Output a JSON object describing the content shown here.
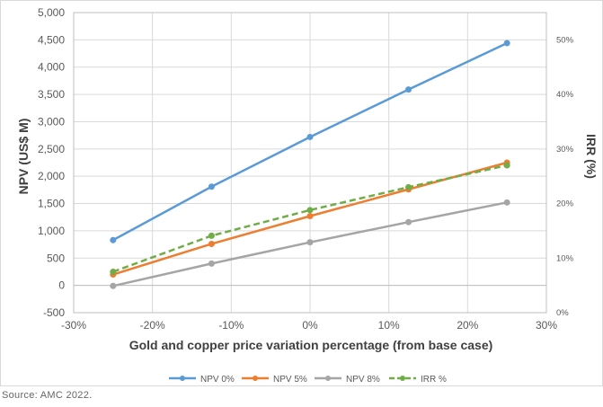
{
  "chart_data": {
    "type": "line",
    "xlabel": "Gold and copper price variation percentage (from base case)",
    "ylabel": "NPV (US$ M)",
    "y2label": "IRR (%)",
    "x": [
      -25,
      -12.5,
      0,
      12.5,
      25
    ],
    "xlim": [
      -30,
      30
    ],
    "xticks": [
      -30,
      -20,
      -10,
      0,
      10,
      20,
      30
    ],
    "xtick_labels": [
      "-30%",
      "-20%",
      "-10%",
      "0%",
      "10%",
      "20%",
      "30%"
    ],
    "ylim": [
      -500,
      5000
    ],
    "yticks": [
      -500,
      0,
      500,
      1000,
      1500,
      2000,
      2500,
      3000,
      3500,
      4000,
      4500,
      5000
    ],
    "ytick_labels": [
      "-500",
      "0",
      "500",
      "1,000",
      "1,500",
      "2,000",
      "2,500",
      "3,000",
      "3,500",
      "4,000",
      "4,500",
      "5,000"
    ],
    "y2lim": [
      0,
      55
    ],
    "y2ticks": [
      0,
      10,
      20,
      30,
      40,
      50
    ],
    "y2tick_labels": [
      "0%",
      "10%",
      "20%",
      "30%",
      "40%",
      "50%"
    ],
    "grid": true,
    "legend_position": "bottom",
    "series": [
      {
        "name": "NPV 0%",
        "axis": "left",
        "color": "#5b9bd5",
        "dashed": false,
        "values": [
          830,
          1810,
          2720,
          3590,
          4440
        ]
      },
      {
        "name": "NPV 5%",
        "axis": "left",
        "color": "#ed7d31",
        "dashed": false,
        "values": [
          200,
          760,
          1270,
          1760,
          2250
        ]
      },
      {
        "name": "NPV 8%",
        "axis": "left",
        "color": "#a5a5a5",
        "dashed": false,
        "values": [
          -10,
          400,
          790,
          1160,
          1520
        ]
      },
      {
        "name": "IRR %",
        "axis": "right",
        "color": "#70ad47",
        "dashed": true,
        "values": [
          7.5,
          14.1,
          18.8,
          23,
          27
        ]
      }
    ]
  },
  "source_note": "Source: AMC 2022."
}
